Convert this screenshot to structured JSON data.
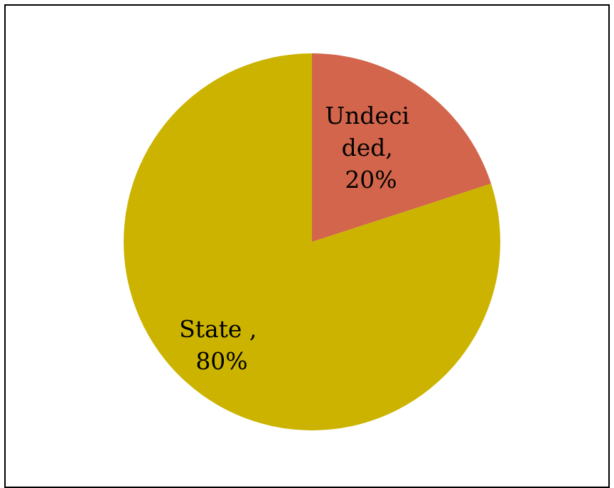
{
  "chart_data": {
    "type": "pie",
    "start_angle_deg": 0,
    "direction": "clockwise",
    "grid": false,
    "legend": "none",
    "slices": [
      {
        "label_lines": [
          "Undeci",
          "ded,",
          "20%"
        ],
        "category": "Undecided",
        "value": 20,
        "color": "#D2654B"
      },
      {
        "label_lines": [
          "State ,",
          "80%"
        ],
        "category": "State",
        "value": 80,
        "color": "#CBB300"
      }
    ]
  }
}
